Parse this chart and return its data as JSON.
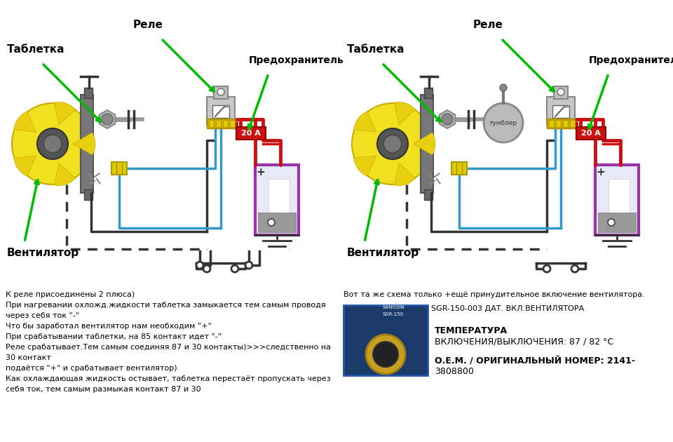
{
  "figsize": [
    9.6,
    6.3
  ],
  "dpi": 100,
  "bg_color": "#ffffff",
  "wire_red": "#cc1111",
  "wire_blue": "#3399cc",
  "wire_black": "#333333",
  "wire_dashed": "#555555",
  "fan_yellow": "#f0e020",
  "fan_gray": "#888888",
  "relay_gray": "#c0c0c0",
  "relay_gold": "#d4b800",
  "fuse_red": "#cc1111",
  "battery_purple": "#9933aa",
  "battery_gray": "#aaaaaa",
  "battery_white": "#ffffff",
  "tumbler_gray": "#aaaaaa",
  "arrow_green": "#00bb00",
  "lbl_tablетка": "Таблетка",
  "lbl_rele": "Реле",
  "lbl_predohranitel": "Предохранитель",
  "lbl_ventilyator": "Вентилятор",
  "lbl_20a": "20 А",
  "lbl_tumbler": "тумблер",
  "txt_bottom_left": [
    "К реле присоединены 2 плюса)",
    "При нагревании охложд.жидкости таблетка замыкается тем самым проводя",
    "через себя ток \"-\"",
    "Что бы заработал вентилятор нам необходим \"+\"",
    "При срабатывании таблетки, на 85 контакт идет \"-\"",
    "Реле срабатывает.Тем самым соединяя 87 и 30 контакты)>>>следственно на",
    "30 контакт",
    "подаётся \"+\" и срабатывает вентилятор)",
    "Как охлаждающая жидкость остывает, таблетка перестаёт пропускать через",
    "себя ток, тем самым размыкая контакт 87 и 30"
  ],
  "txt_br1": "Вот та же схема только +ещё принудительное включение вентилятора.",
  "txt_br2": "SGR-150-003 ДАТ. ВКЛ.ВЕНТИЛЯТОРА",
  "txt_br3": "ТЕМПЕРАТУРА",
  "txt_br4": "ВКЛЮЧЕНИЯ/ВЫКЛЮЧЕНИЯ: 87 / 82 °C",
  "txt_br5": "О.Е.М. / ОРИГИНАЛЬНЫЙ НОМЕР: 2141-",
  "txt_br6": "3808800"
}
